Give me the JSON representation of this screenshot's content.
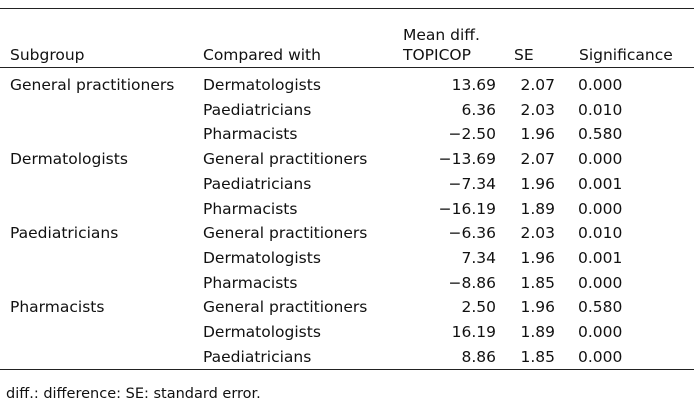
{
  "table": {
    "headers": {
      "subgroup": "Subgroup",
      "compared_with": "Compared with",
      "mean_diff_line1": "Mean diff.",
      "mean_diff_line2": "TOPICOP",
      "se": "SE",
      "significance": "Significance"
    },
    "rows": [
      {
        "subgroup": "General practitioners",
        "compared_with": "Dermatologists",
        "mean_diff": "13.69",
        "se": "2.07",
        "significance": "0.000"
      },
      {
        "subgroup": "",
        "compared_with": "Paediatricians",
        "mean_diff": "6.36",
        "se": "2.03",
        "significance": "0.010"
      },
      {
        "subgroup": "",
        "compared_with": "Pharmacists",
        "mean_diff": "−2.50",
        "se": "1.96",
        "significance": "0.580"
      },
      {
        "subgroup": "Dermatologists",
        "compared_with": "General practitioners",
        "mean_diff": "−13.69",
        "se": "2.07",
        "significance": "0.000"
      },
      {
        "subgroup": "",
        "compared_with": "Paediatricians",
        "mean_diff": "−7.34",
        "se": "1.96",
        "significance": "0.001"
      },
      {
        "subgroup": "",
        "compared_with": "Pharmacists",
        "mean_diff": "−16.19",
        "se": "1.89",
        "significance": "0.000"
      },
      {
        "subgroup": "Paediatricians",
        "compared_with": "General practitioners",
        "mean_diff": "−6.36",
        "se": "2.03",
        "significance": "0.010"
      },
      {
        "subgroup": "",
        "compared_with": "Dermatologists",
        "mean_diff": "7.34",
        "se": "1.96",
        "significance": "0.001"
      },
      {
        "subgroup": "",
        "compared_with": "Pharmacists",
        "mean_diff": "−8.86",
        "se": "1.85",
        "significance": "0.000"
      },
      {
        "subgroup": "Pharmacists",
        "compared_with": "General practitioners",
        "mean_diff": "2.50",
        "se": "1.96",
        "significance": "0.580"
      },
      {
        "subgroup": "",
        "compared_with": "Dermatologists",
        "mean_diff": "16.19",
        "se": "1.89",
        "significance": "0.000"
      },
      {
        "subgroup": "",
        "compared_with": "Paediatricians",
        "mean_diff": "8.86",
        "se": "1.85",
        "significance": "0.000"
      }
    ]
  },
  "footnote": "diff.: difference: SE: standard error."
}
